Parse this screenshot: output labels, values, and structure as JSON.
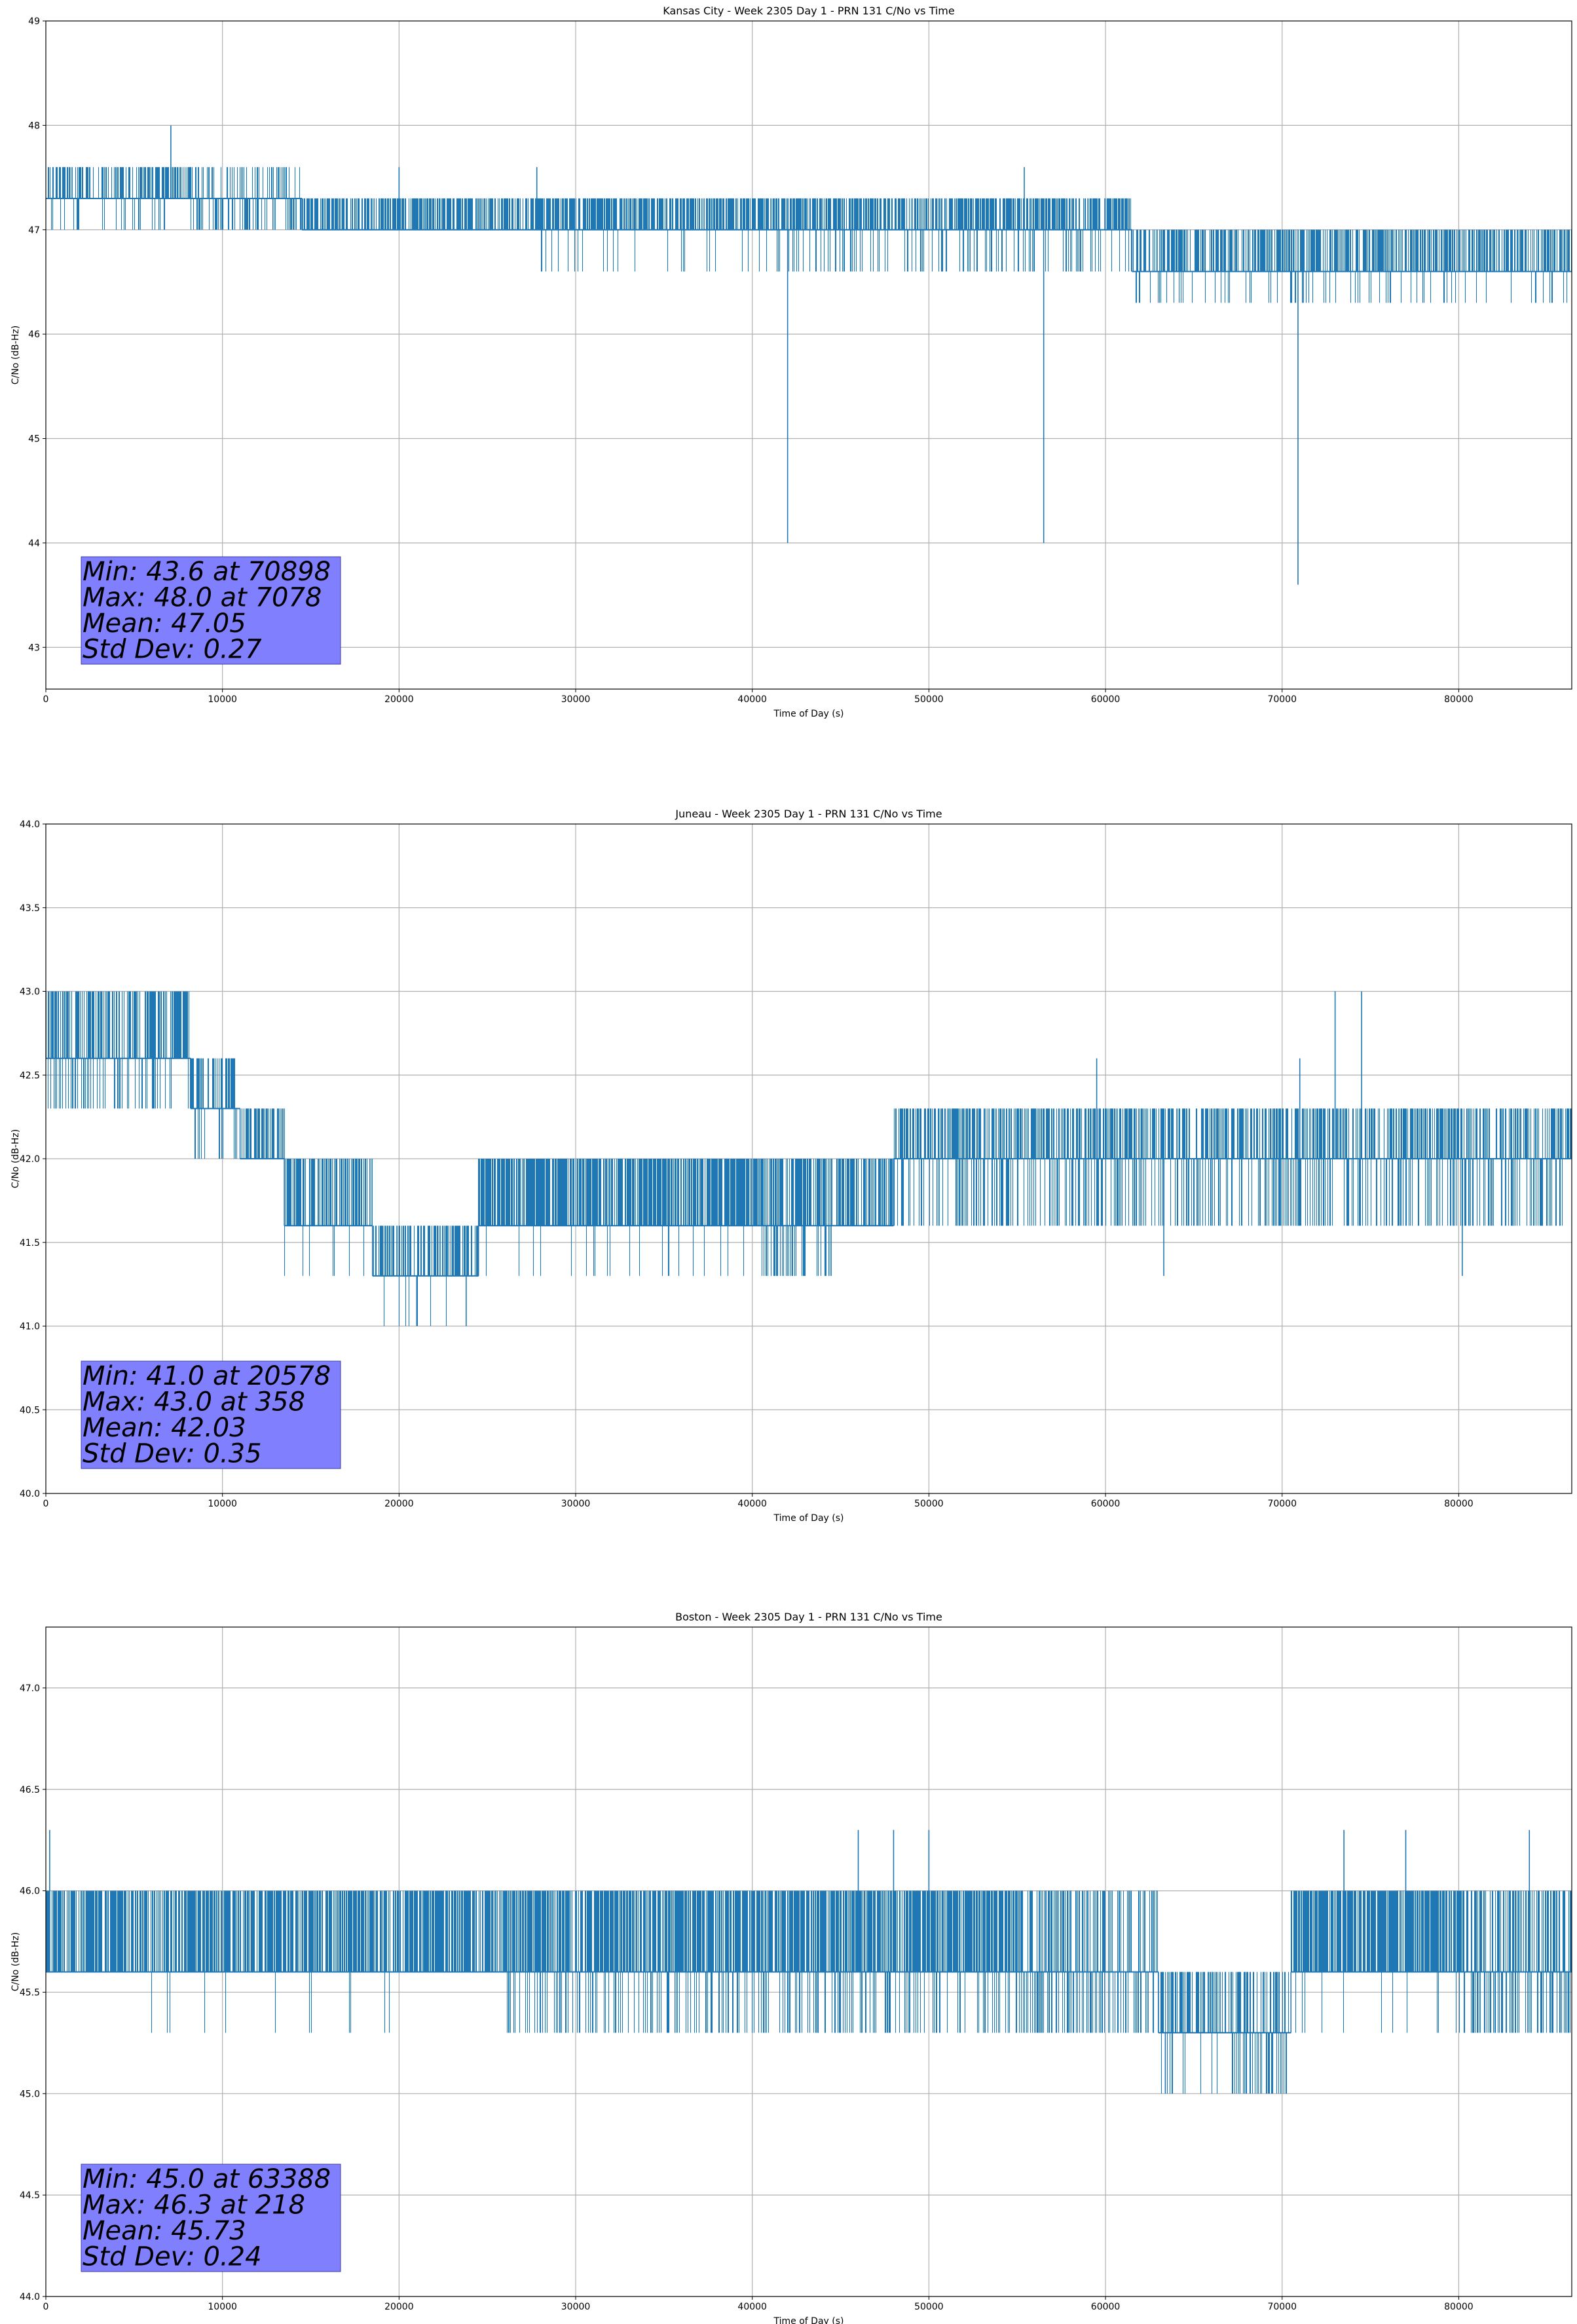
{
  "chart_data": [
    {
      "type": "line",
      "title": "Kansas City - Week 2305 Day 1 - PRN 131 C/No vs Time",
      "xlabel": "Time of Day (s)",
      "ylabel": "C/No (dB-Hz)",
      "xlim": [
        0,
        86400
      ],
      "ylim": [
        42.6,
        49.0
      ],
      "x_ticks": [
        0,
        10000,
        20000,
        30000,
        40000,
        50000,
        60000,
        70000,
        80000
      ],
      "y_ticks": [
        43,
        44,
        45,
        46,
        47,
        48,
        49
      ],
      "y_tick_labels": [
        "43",
        "44",
        "45",
        "46",
        "47",
        "48",
        "49"
      ],
      "grid": true,
      "color": "#1f77b4",
      "levels": [
        46.3,
        46.6,
        47.0,
        47.3,
        47.6
      ],
      "segments": [
        {
          "x0": 0,
          "x1": 8200,
          "base": 47.3,
          "hi": 47.6,
          "lo": 47.0,
          "pHi": 0.55,
          "pLo": 0.12
        },
        {
          "x0": 8200,
          "x1": 14500,
          "base": 47.3,
          "hi": 47.6,
          "lo": 47.0,
          "pHi": 0.25,
          "pLo": 0.35
        },
        {
          "x0": 14500,
          "x1": 27500,
          "base": 47.0,
          "hi": 47.3,
          "lo": null,
          "pHi": 0.6,
          "pLo": 0
        },
        {
          "x0": 27500,
          "x1": 39500,
          "base": 47.0,
          "hi": 47.3,
          "lo": 46.6,
          "pHi": 0.7,
          "pLo": 0.08
        },
        {
          "x0": 39500,
          "x1": 61500,
          "base": 47.0,
          "hi": 47.3,
          "lo": 46.6,
          "pHi": 0.65,
          "pLo": 0.18
        },
        {
          "x0": 61500,
          "x1": 86400,
          "base": 46.6,
          "hi": 47.0,
          "lo": 46.3,
          "pHi": 0.6,
          "pLo": 0.12
        }
      ],
      "spikes": [
        [
          7078,
          48.0
        ],
        [
          20000,
          47.6
        ],
        [
          27800,
          47.6
        ],
        [
          42000,
          44.0
        ],
        [
          56500,
          44.0
        ],
        [
          55400,
          47.6
        ],
        [
          70898,
          43.6
        ],
        [
          71200,
          46.3
        ]
      ],
      "stats_box": {
        "min": "Min: 43.6 at 70898",
        "max": "Max: 48.0 at 7078",
        "mean": "Mean: 47.05",
        "std": "Std Dev: 0.27"
      }
    },
    {
      "type": "line",
      "title": "Juneau - Week 2305 Day 1 - PRN 131 C/No vs Time",
      "xlabel": "Time of Day (s)",
      "ylabel": "C/No (dB-Hz)",
      "xlim": [
        0,
        86400
      ],
      "ylim": [
        40.0,
        44.0
      ],
      "x_ticks": [
        0,
        10000,
        20000,
        30000,
        40000,
        50000,
        60000,
        70000,
        80000
      ],
      "y_ticks": [
        40.0,
        40.5,
        41.0,
        41.5,
        42.0,
        42.5,
        43.0,
        43.5,
        44.0
      ],
      "y_tick_labels": [
        "40.0",
        "40.5",
        "41.0",
        "41.5",
        "42.0",
        "42.5",
        "43.0",
        "43.5",
        "44.0"
      ],
      "grid": true,
      "color": "#1f77b4",
      "levels": [
        41.0,
        41.3,
        41.6,
        42.0,
        42.3,
        42.6,
        43.0
      ],
      "segments": [
        {
          "x0": 0,
          "x1": 8200,
          "base": 42.6,
          "hi": 43.0,
          "lo": 42.3,
          "pHi": 0.55,
          "pLo": 0.3
        },
        {
          "x0": 8200,
          "x1": 11000,
          "base": 42.3,
          "hi": 42.6,
          "lo": 42.0,
          "pHi": 0.45,
          "pLo": 0.2
        },
        {
          "x0": 11000,
          "x1": 13500,
          "base": 42.0,
          "hi": 42.3,
          "lo": null,
          "pHi": 0.55,
          "pLo": 0
        },
        {
          "x0": 13500,
          "x1": 18500,
          "base": 41.6,
          "hi": 42.0,
          "lo": 41.3,
          "pHi": 0.6,
          "pLo": 0.1
        },
        {
          "x0": 18500,
          "x1": 24500,
          "base": 41.3,
          "hi": 41.6,
          "lo": 41.0,
          "pHi": 0.55,
          "pLo": 0.05
        },
        {
          "x0": 24500,
          "x1": 40500,
          "base": 41.6,
          "hi": 42.0,
          "lo": 41.3,
          "pHi": 0.75,
          "pLo": 0.04
        },
        {
          "x0": 40500,
          "x1": 44500,
          "base": 41.6,
          "hi": 42.0,
          "lo": 41.3,
          "pHi": 0.55,
          "pLo": 0.3
        },
        {
          "x0": 44500,
          "x1": 48000,
          "base": 41.6,
          "hi": 42.0,
          "lo": null,
          "pHi": 0.6,
          "pLo": 0
        },
        {
          "x0": 48000,
          "x1": 86400,
          "base": 42.0,
          "hi": 42.3,
          "lo": 41.6,
          "pHi": 0.55,
          "pLo": 0.3
        }
      ],
      "spikes": [
        [
          358,
          43.0
        ],
        [
          21000,
          41.0
        ],
        [
          23800,
          41.0
        ],
        [
          73000,
          43.0
        ],
        [
          74500,
          43.0
        ],
        [
          80200,
          41.3
        ],
        [
          63300,
          41.3
        ],
        [
          59500,
          42.6
        ],
        [
          71000,
          42.6
        ]
      ],
      "stats_box": {
        "min": "Min: 41.0 at 20578",
        "max": "Max: 43.0 at 358",
        "mean": "Mean: 42.03",
        "std": "Std Dev: 0.35"
      }
    },
    {
      "type": "line",
      "title": "Boston - Week 2305 Day 1 - PRN 131 C/No vs Time",
      "xlabel": "Time of Day (s)",
      "ylabel": "C/No (dB-Hz)",
      "xlim": [
        0,
        86400
      ],
      "ylim": [
        44.0,
        47.3
      ],
      "x_ticks": [
        0,
        10000,
        20000,
        30000,
        40000,
        50000,
        60000,
        70000,
        80000
      ],
      "y_ticks": [
        44.0,
        44.5,
        45.0,
        45.5,
        46.0,
        46.5,
        47.0
      ],
      "y_tick_labels": [
        "44.0",
        "44.5",
        "45.0",
        "45.5",
        "46.0",
        "46.5",
        "47.0"
      ],
      "grid": true,
      "color": "#1f77b4",
      "levels": [
        45.0,
        45.3,
        45.6,
        46.0,
        46.3
      ],
      "segments": [
        {
          "x0": 0,
          "x1": 26000,
          "base": 45.6,
          "hi": 46.0,
          "lo": 45.3,
          "pHi": 0.7,
          "pLo": 0.02
        },
        {
          "x0": 26000,
          "x1": 34000,
          "base": 45.6,
          "hi": 46.0,
          "lo": 45.3,
          "pHi": 0.7,
          "pLo": 0.2
        },
        {
          "x0": 34000,
          "x1": 45000,
          "base": 45.6,
          "hi": 46.0,
          "lo": 45.3,
          "pHi": 0.8,
          "pLo": 0.25
        },
        {
          "x0": 45000,
          "x1": 54500,
          "base": 45.6,
          "hi": 46.0,
          "lo": 45.3,
          "pHi": 0.75,
          "pLo": 0.2
        },
        {
          "x0": 54500,
          "x1": 63000,
          "base": 45.6,
          "hi": 46.0,
          "lo": 45.3,
          "pHi": 0.5,
          "pLo": 0.4
        },
        {
          "x0": 63000,
          "x1": 67000,
          "base": 45.3,
          "hi": 45.6,
          "lo": 45.0,
          "pHi": 0.55,
          "pLo": 0.08
        },
        {
          "x0": 67000,
          "x1": 70500,
          "base": 45.3,
          "hi": 45.6,
          "lo": 45.0,
          "pHi": 0.45,
          "pLo": 0.35
        },
        {
          "x0": 70500,
          "x1": 80000,
          "base": 45.6,
          "hi": 46.0,
          "lo": 45.3,
          "pHi": 0.75,
          "pLo": 0.05
        },
        {
          "x0": 80000,
          "x1": 86400,
          "base": 45.6,
          "hi": 46.0,
          "lo": 45.3,
          "pHi": 0.55,
          "pLo": 0.35
        }
      ],
      "spikes": [
        [
          218,
          46.3
        ],
        [
          63388,
          45.0
        ],
        [
          46000,
          46.3
        ],
        [
          48000,
          46.3
        ],
        [
          50000,
          46.3
        ],
        [
          73500,
          46.3
        ],
        [
          77000,
          46.3
        ],
        [
          84000,
          46.3
        ]
      ],
      "stats_box": {
        "min": "Min: 45.0 at 63388",
        "max": "Max: 46.3 at 218",
        "mean": "Mean: 45.73",
        "std": "Std Dev: 0.24"
      }
    }
  ]
}
